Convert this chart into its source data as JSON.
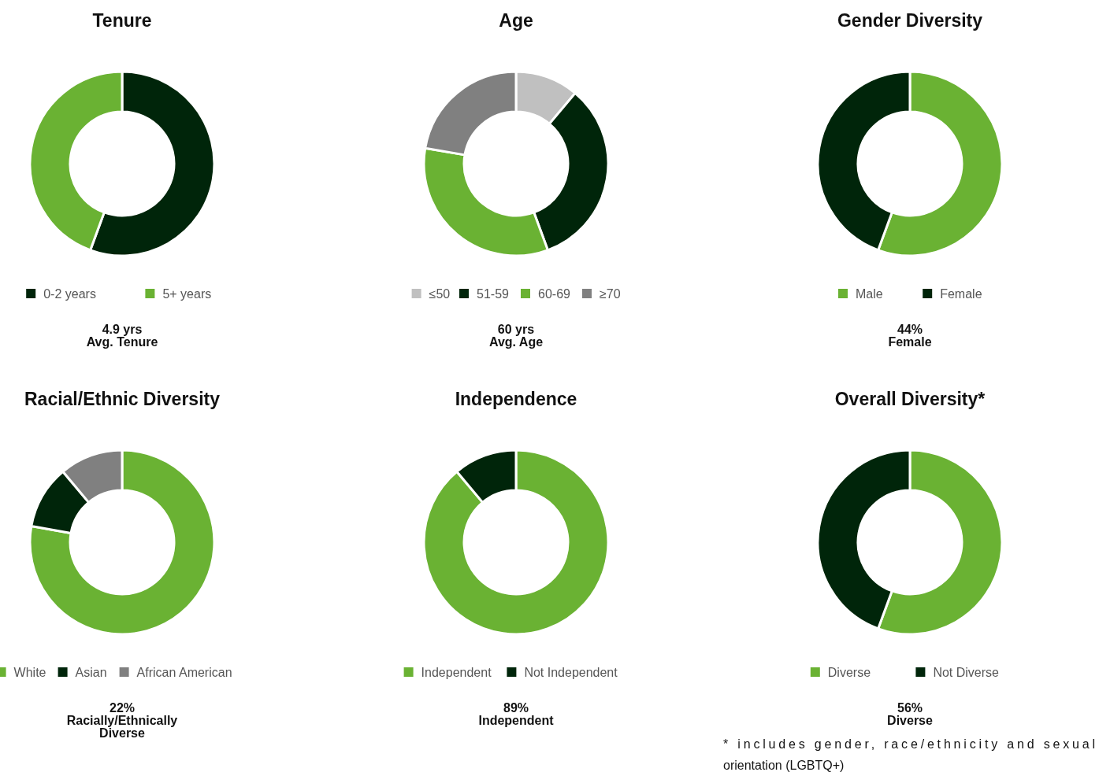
{
  "chart_data": [
    {
      "type": "donut",
      "title": "Tenure",
      "categories": [
        "0-2 years",
        "5+ years"
      ],
      "values": [
        55.6,
        44.4
      ],
      "colors": [
        "#00250a",
        "#6ab233"
      ],
      "legend": "bottom",
      "annotations": [
        "4.9 yrs\nAvg. Tenure"
      ]
    },
    {
      "type": "donut",
      "title": "Age",
      "categories": [
        "≤50",
        "51-59",
        "60-69",
        "≥70"
      ],
      "values": [
        11.1,
        33.3,
        33.3,
        22.3
      ],
      "colors": [
        "#c0c0c0",
        "#00250a",
        "#6ab233",
        "#808080"
      ],
      "legend": "bottom",
      "annotations": [
        "60 yrs\nAvg. Age"
      ]
    },
    {
      "type": "donut",
      "title": "Gender Diversity",
      "categories": [
        "Male",
        "Female"
      ],
      "values": [
        55.6,
        44.4
      ],
      "colors": [
        "#6ab233",
        "#00250a"
      ],
      "legend": "bottom",
      "annotations": [
        "44%\nFemale"
      ]
    },
    {
      "type": "donut",
      "title": "Racial/Ethnic Diversity",
      "categories": [
        "White",
        "Asian",
        "African American"
      ],
      "values": [
        77.8,
        11.1,
        11.1
      ],
      "colors": [
        "#6ab233",
        "#00250a",
        "#808080"
      ],
      "legend": "bottom",
      "annotations": [
        "22%\nRacially/Ethnically\nDiverse"
      ]
    },
    {
      "type": "donut",
      "title": "Independence",
      "categories": [
        "Independent",
        "Not Independent"
      ],
      "values": [
        88.9,
        11.1
      ],
      "colors": [
        "#6ab233",
        "#00250a"
      ],
      "legend": "bottom",
      "annotations": [
        "89%\nIndependent"
      ]
    },
    {
      "type": "donut",
      "title": "Overall Diversity*",
      "categories": [
        "Diverse",
        "Not Diverse"
      ],
      "values": [
        55.6,
        44.4
      ],
      "colors": [
        "#6ab233",
        "#00250a"
      ],
      "legend": "bottom",
      "annotations": [
        "56%\nDiverse",
        "* includes gender, race/ethnicity and sexual orientation (LGBTQ+)"
      ]
    }
  ]
}
